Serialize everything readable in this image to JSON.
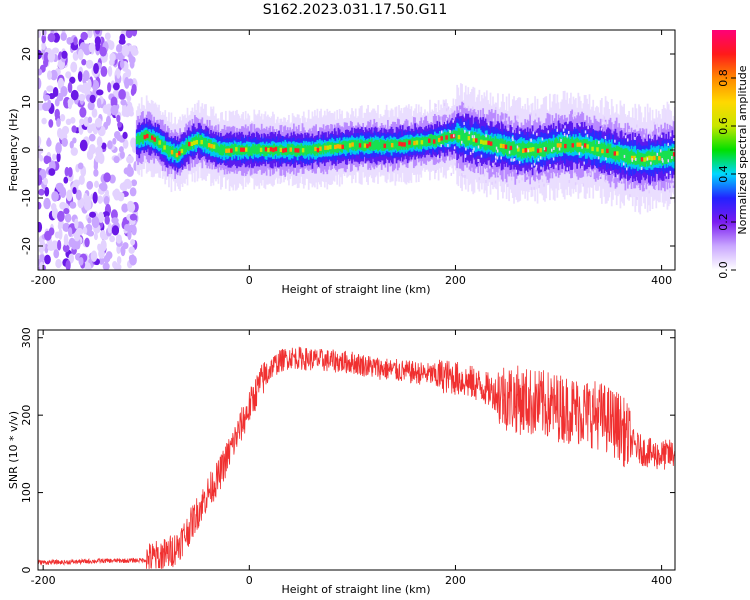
{
  "title": "S162.2023.031.17.50.G11",
  "chart_data": [
    {
      "type": "heatmap",
      "xlabel": "Height of straight line (km)",
      "ylabel": "Frequency (Hz)",
      "xlim": [
        -205,
        413
      ],
      "ylim": [
        -25,
        25
      ],
      "xticks": [
        -200,
        0,
        200,
        400
      ],
      "yticks": [
        -20,
        -10,
        0,
        10,
        20
      ],
      "grid": false,
      "noise_region_x": [
        -205,
        -110
      ],
      "ridge": {
        "x": [
          -110,
          -100,
          -90,
          -80,
          -70,
          -60,
          -50,
          -40,
          -30,
          -20,
          -10,
          0,
          20,
          40,
          60,
          80,
          100,
          120,
          140,
          160,
          180,
          200,
          220,
          240,
          260,
          280,
          300,
          320,
          340,
          360,
          380,
          400,
          413
        ],
        "y": [
          2,
          3,
          2,
          0,
          -1,
          1,
          2,
          1,
          0,
          0,
          0,
          0,
          0,
          0,
          0,
          0.5,
          1,
          1,
          1,
          1.5,
          2,
          3,
          2,
          1,
          0,
          0,
          1,
          1,
          0,
          -1,
          -2,
          -1.5,
          -1
        ]
      },
      "colorbar": {
        "label": "Normalized spectral amplitude",
        "range": [
          0,
          1
        ],
        "ticks": [
          "0.0",
          "0.2",
          "0.4",
          "0.6",
          "0.8"
        ],
        "tick_values": [
          0,
          0.2,
          0.4,
          0.6,
          0.8
        ],
        "colors": [
          "#ffffff",
          "#c9a6ff",
          "#7a1cf0",
          "#2222ff",
          "#00d8ff",
          "#00e000",
          "#c8e600",
          "#ffd800",
          "#ff8800",
          "#ff1a1a",
          "#ff0077"
        ]
      }
    },
    {
      "type": "line",
      "xlabel": "Height of straight line (km)",
      "ylabel": "SNR (10 * v/v)",
      "xlim": [
        -205,
        413
      ],
      "ylim": [
        0,
        310
      ],
      "xticks": [
        -200,
        0,
        200,
        400
      ],
      "yticks": [
        0,
        100,
        200,
        300
      ],
      "grid": false,
      "series": [
        {
          "color": "#f03030",
          "x": [
            -205,
            -180,
            -160,
            -140,
            -120,
            -100,
            -90,
            -80,
            -70,
            -60,
            -50,
            -40,
            -30,
            -20,
            -10,
            0,
            10,
            20,
            30,
            40,
            60,
            80,
            100,
            120,
            140,
            160,
            180,
            200,
            220,
            240,
            260,
            280,
            300,
            320,
            340,
            360,
            370,
            380,
            390,
            400,
            413
          ],
          "y": [
            10,
            10,
            11,
            12,
            12,
            13,
            16,
            20,
            30,
            50,
            75,
            100,
            120,
            150,
            180,
            210,
            240,
            260,
            270,
            275,
            272,
            270,
            268,
            262,
            258,
            255,
            252,
            248,
            240,
            228,
            220,
            215,
            210,
            205,
            200,
            185,
            165,
            155,
            150,
            148,
            150
          ]
        }
      ]
    }
  ]
}
